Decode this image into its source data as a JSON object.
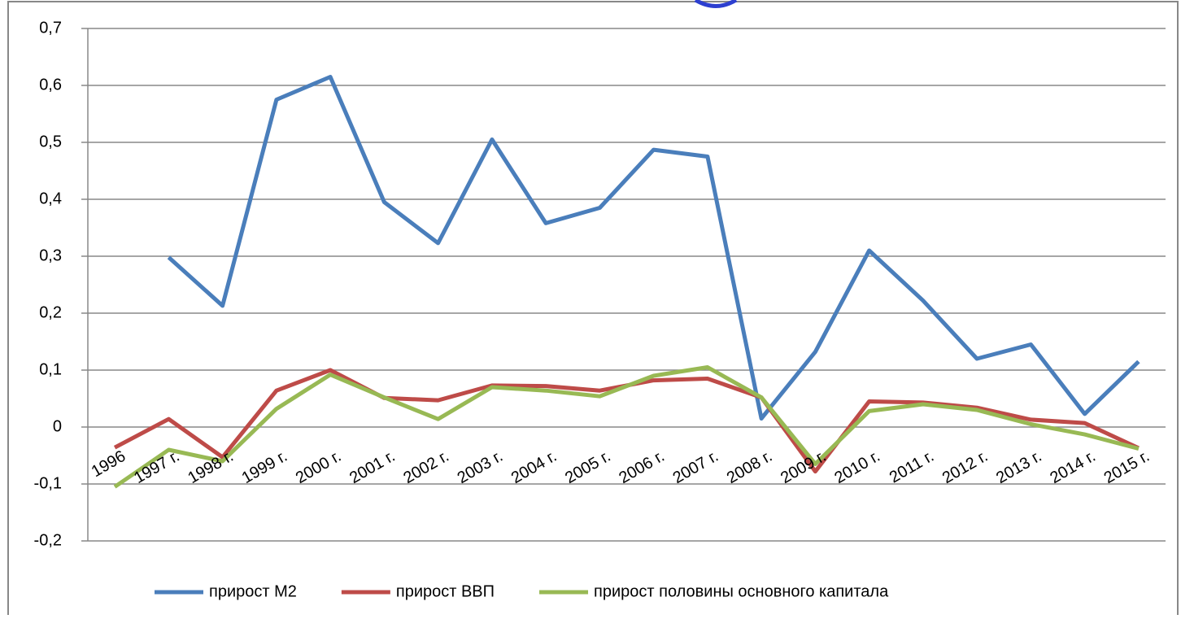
{
  "chart_data": {
    "type": "line",
    "categories": [
      "1996",
      "1997 г.",
      "1998 г.",
      "1999 г.",
      "2000 г.",
      "2001 г.",
      "2002 г.",
      "2003 г.",
      "2004 г.",
      "2005 г.",
      "2006 г.",
      "2007 г.",
      "2008 г.",
      "2009 г.",
      "2010 г.",
      "2011 г.",
      "2012 г.",
      "2013 г.",
      "2014 г.",
      "2015 г."
    ],
    "series": [
      {
        "name": "прирост М2",
        "color": "#4a7ebb",
        "values": [
          null,
          0.298,
          0.213,
          0.575,
          0.615,
          0.395,
          0.323,
          0.505,
          0.358,
          0.385,
          0.487,
          0.475,
          0.015,
          0.132,
          0.31,
          0.222,
          0.12,
          0.145,
          0.023,
          0.115
        ]
      },
      {
        "name": "прирост ВВП",
        "color": "#be4b48",
        "values": [
          -0.036,
          0.014,
          -0.053,
          0.064,
          0.1,
          0.051,
          0.047,
          0.073,
          0.072,
          0.064,
          0.082,
          0.085,
          0.052,
          -0.078,
          0.045,
          0.043,
          0.034,
          0.013,
          0.007,
          -0.037
        ]
      },
      {
        "name": "прирост половины основного капитала",
        "color": "#98b954",
        "values": [
          -0.105,
          -0.04,
          -0.06,
          0.032,
          0.092,
          0.052,
          0.014,
          0.07,
          0.064,
          0.054,
          0.09,
          0.105,
          0.052,
          -0.065,
          0.028,
          0.04,
          0.03,
          0.005,
          -0.013,
          -0.038
        ]
      }
    ],
    "ylim": [
      -0.2,
      0.7
    ],
    "yticks": [
      {
        "value": -0.2,
        "label": "-0,2"
      },
      {
        "value": -0.1,
        "label": "-0,1"
      },
      0,
      {
        "value": 0.1,
        "label": "0,1"
      },
      {
        "value": 0.2,
        "label": "0,2"
      },
      {
        "value": 0.3,
        "label": "0,3"
      },
      {
        "value": 0.4,
        "label": "0,4"
      },
      {
        "value": 0.5,
        "label": "0,5"
      },
      {
        "value": 0.6,
        "label": "0,6"
      },
      {
        "value": 0.7,
        "label": "0,7"
      }
    ],
    "grid": true,
    "legend": "bottom"
  }
}
